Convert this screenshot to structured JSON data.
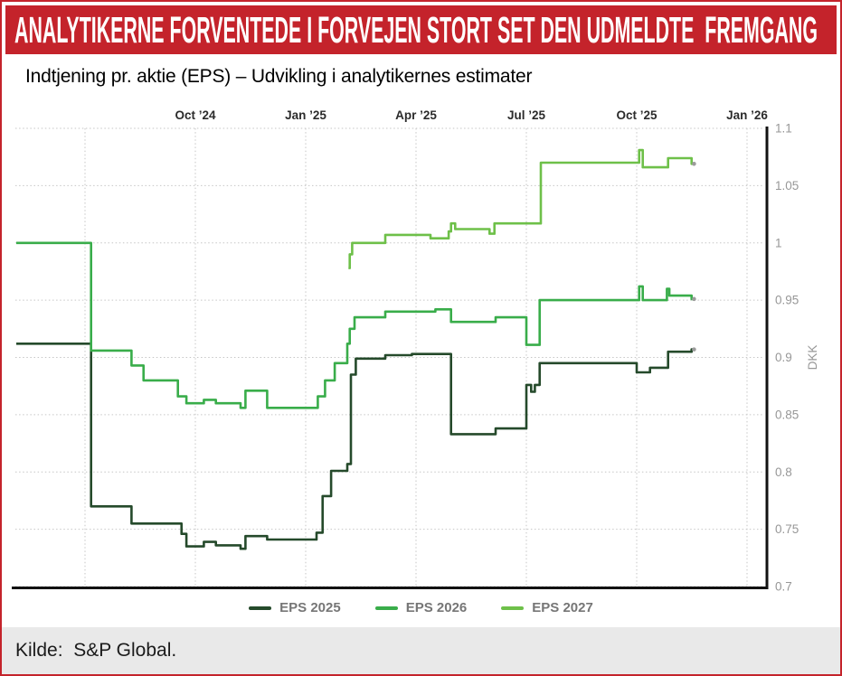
{
  "theme": {
    "accent_red": "#c4232b",
    "footer_bg": "#e9e9e9"
  },
  "header": {
    "title": "ANALYTIKERNE FORVENTEDE I FORVEJEN STORT SET DEN UDMELDTE  FREMGANG"
  },
  "subtitle": "Indtjening pr. aktie (EPS) – Udvikling i analytikernes estimater",
  "source": "Kilde:  S&P Global.",
  "chart_data": {
    "type": "line",
    "step": true,
    "title": "Indtjening pr. aktie (EPS) – Udvikling i analytikernes estimater",
    "xlabel": "",
    "ylabel": "DKK",
    "ylim": [
      0.7,
      1.1
    ],
    "grid": true,
    "legend_position": "bottom",
    "x_ticks": [
      {
        "label": "Oct ’24",
        "date": "2024-10-01"
      },
      {
        "label": "Jan ’25",
        "date": "2025-01-01"
      },
      {
        "label": "Apr ’25",
        "date": "2025-04-01"
      },
      {
        "label": "Jul ’25",
        "date": "2025-07-01"
      },
      {
        "label": "Oct ’25",
        "date": "2025-10-01"
      },
      {
        "label": "Jan ’26",
        "date": "2026-01-01"
      }
    ],
    "extra_gridlines": [
      "2024-07-01"
    ],
    "y_ticks": [
      "1.1",
      "1.05",
      "1",
      "0.95",
      "0.9",
      "0.85",
      "0.8",
      "0.75",
      "0.7"
    ],
    "end_date": "2025-11-18",
    "series": [
      {
        "label": "EPS 2025",
        "color": "#254a2b",
        "points": [
          [
            "2024-05-05",
            0.912
          ],
          [
            "2024-07-06",
            0.77
          ],
          [
            "2024-08-09",
            0.755
          ],
          [
            "2024-09-20",
            0.746
          ],
          [
            "2024-09-24",
            0.735
          ],
          [
            "2024-10-08",
            0.739
          ],
          [
            "2024-10-18",
            0.736
          ],
          [
            "2024-11-08",
            0.733
          ],
          [
            "2024-11-12",
            0.744
          ],
          [
            "2024-11-30",
            0.741
          ],
          [
            "2025-01-10",
            0.747
          ],
          [
            "2025-01-15",
            0.779
          ],
          [
            "2025-01-22",
            0.801
          ],
          [
            "2025-02-05",
            0.807
          ],
          [
            "2025-02-08",
            0.885
          ],
          [
            "2025-02-12",
            0.899
          ],
          [
            "2025-03-06",
            0.902
          ],
          [
            "2025-03-28",
            0.903
          ],
          [
            "2025-04-30",
            0.833
          ],
          [
            "2025-06-06",
            0.838
          ],
          [
            "2025-07-01",
            0.876
          ],
          [
            "2025-07-05",
            0.87
          ],
          [
            "2025-07-08",
            0.876
          ],
          [
            "2025-07-12",
            0.895
          ],
          [
            "2025-10-01",
            0.887
          ],
          [
            "2025-10-12",
            0.891
          ],
          [
            "2025-10-27",
            0.905
          ],
          [
            "2025-11-16",
            0.907
          ],
          [
            "2025-11-18",
            0.907
          ]
        ]
      },
      {
        "label": "EPS 2026",
        "color": "#39ad4a",
        "points": [
          [
            "2024-05-05",
            1.0
          ],
          [
            "2024-07-06",
            0.906
          ],
          [
            "2024-08-09",
            0.893
          ],
          [
            "2024-08-19",
            0.88
          ],
          [
            "2024-09-17",
            0.866
          ],
          [
            "2024-09-24",
            0.86
          ],
          [
            "2024-10-08",
            0.863
          ],
          [
            "2024-10-18",
            0.86
          ],
          [
            "2024-11-08",
            0.856
          ],
          [
            "2024-11-12",
            0.871
          ],
          [
            "2024-11-30",
            0.856
          ],
          [
            "2025-01-11",
            0.866
          ],
          [
            "2025-01-17",
            0.88
          ],
          [
            "2025-01-25",
            0.895
          ],
          [
            "2025-02-05",
            0.912
          ],
          [
            "2025-02-07",
            0.925
          ],
          [
            "2025-02-11",
            0.935
          ],
          [
            "2025-03-06",
            0.94
          ],
          [
            "2025-04-17",
            0.942
          ],
          [
            "2025-04-30",
            0.931
          ],
          [
            "2025-06-06",
            0.935
          ],
          [
            "2025-07-01",
            0.911
          ],
          [
            "2025-07-12",
            0.95
          ],
          [
            "2025-10-03",
            0.962
          ],
          [
            "2025-10-06",
            0.95
          ],
          [
            "2025-10-26",
            0.96
          ],
          [
            "2025-10-28",
            0.954
          ],
          [
            "2025-11-16",
            0.951
          ],
          [
            "2025-11-18",
            0.951
          ]
        ]
      },
      {
        "label": "EPS 2027",
        "color": "#6ec049",
        "points": [
          [
            "2025-02-06",
            0.978
          ],
          [
            "2025-02-07",
            0.99
          ],
          [
            "2025-02-09",
            1.0
          ],
          [
            "2025-03-06",
            1.007
          ],
          [
            "2025-04-13",
            1.004
          ],
          [
            "2025-04-28",
            1.01
          ],
          [
            "2025-04-30",
            1.017
          ],
          [
            "2025-05-03",
            1.012
          ],
          [
            "2025-06-01",
            1.008
          ],
          [
            "2025-06-05",
            1.017
          ],
          [
            "2025-07-13",
            1.07
          ],
          [
            "2025-10-03",
            1.081
          ],
          [
            "2025-10-06",
            1.066
          ],
          [
            "2025-10-27",
            1.074
          ],
          [
            "2025-11-16",
            1.069
          ],
          [
            "2025-11-18",
            1.069
          ]
        ]
      }
    ]
  }
}
